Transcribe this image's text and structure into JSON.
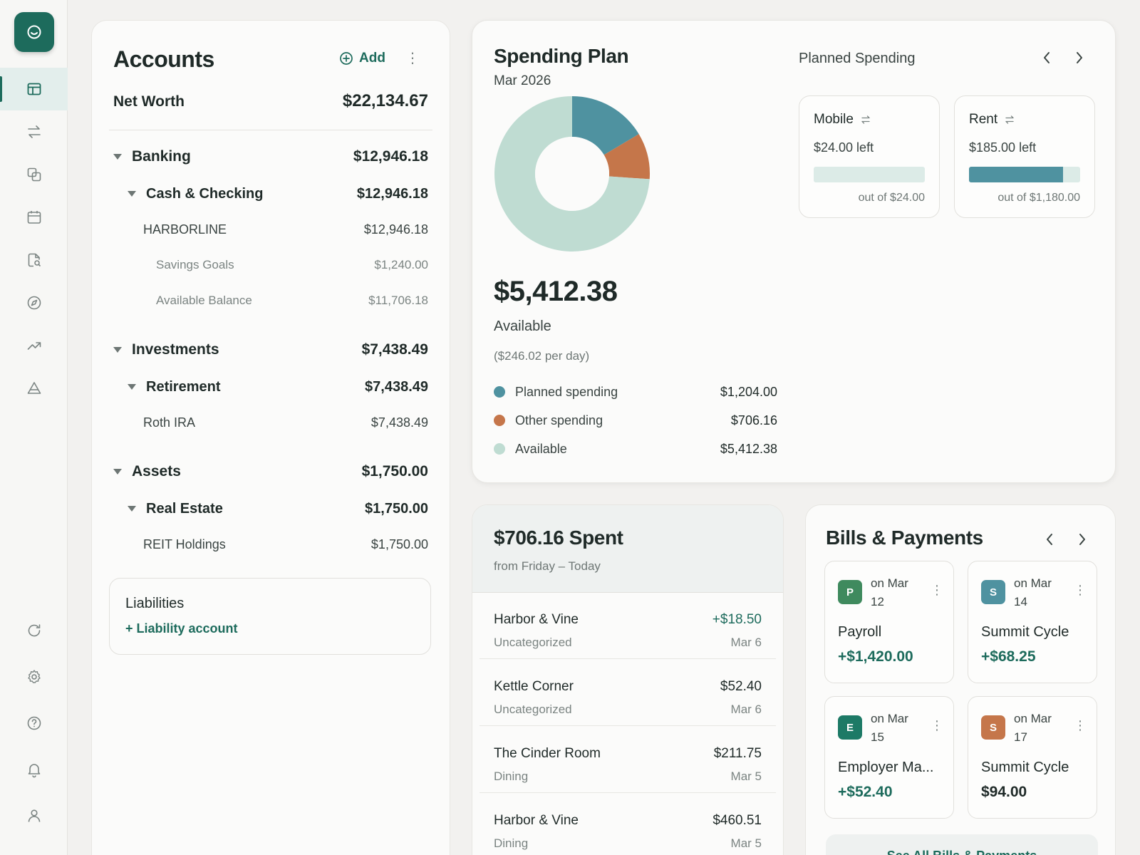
{
  "sidebar": {
    "items": [
      {
        "icon": "dashboard-icon",
        "active": true
      },
      {
        "icon": "transfer-icon",
        "active": false
      },
      {
        "icon": "accounts-icon",
        "active": false
      },
      {
        "icon": "calendar-icon",
        "active": false
      },
      {
        "icon": "reports-icon",
        "active": false
      },
      {
        "icon": "compass-icon",
        "active": false
      },
      {
        "icon": "trend-icon",
        "active": false
      },
      {
        "icon": "goals-icon",
        "active": false
      }
    ],
    "bottom_items": [
      "refresh-icon",
      "settings-icon",
      "help-icon",
      "bell-icon",
      "user-icon"
    ]
  },
  "accounts": {
    "title": "Accounts",
    "add_label": "Add",
    "net_worth_label": "Net Worth",
    "net_worth_value": "$22,134.67",
    "rows": [
      {
        "level": "group",
        "label": "Banking",
        "value": "$12,946.18"
      },
      {
        "level": "sub",
        "label": "Cash & Checking",
        "value": "$12,946.18"
      },
      {
        "level": "acct",
        "label": "HARBORLINE",
        "value": "$12,946.18"
      },
      {
        "level": "det",
        "label": "Savings Goals",
        "value": "$1,240.00"
      },
      {
        "level": "det",
        "label": "Available Balance",
        "value": "$11,706.18"
      },
      {
        "level": "group",
        "label": "Investments",
        "value": "$7,438.49"
      },
      {
        "level": "sub",
        "label": "Retirement",
        "value": "$7,438.49"
      },
      {
        "level": "acct",
        "label": "Roth IRA",
        "value": "$7,438.49"
      },
      {
        "level": "group",
        "label": "Assets",
        "value": "$1,750.00"
      },
      {
        "level": "sub",
        "label": "Real Estate",
        "value": "$1,750.00"
      },
      {
        "level": "acct",
        "label": "REIT Holdings",
        "value": "$1,750.00"
      }
    ],
    "liabilities_title": "Liabilities",
    "liabilities_add": "+ Liability account"
  },
  "spending_plan": {
    "title": "Spending Plan",
    "period": "Mar 2026",
    "planned_label": "Planned Spending",
    "available_amount": "$5,412.38",
    "available_label": "Available",
    "per_day": "($246.02 per day)",
    "legend": [
      {
        "label": "Planned spending",
        "value": "$1,204.00",
        "color": "#4f92a0"
      },
      {
        "label": "Other spending",
        "value": "$706.16",
        "color": "#c5764a"
      },
      {
        "label": "Available",
        "value": "$5,412.38",
        "color": "#bfdcd2"
      }
    ],
    "planned_items": [
      {
        "name": "Mobile",
        "left": "$24.00 left",
        "out_of": "out of $24.00",
        "progress": 0.0
      },
      {
        "name": "Rent",
        "left": "$185.00 left",
        "out_of": "out of $1,180.00",
        "progress": 0.843
      }
    ]
  },
  "chart_data": {
    "type": "pie",
    "categories": [
      "Planned spending",
      "Other spending",
      "Available"
    ],
    "values": [
      1204.0,
      706.16,
      5412.38
    ],
    "colors": [
      "#4f92a0",
      "#c5764a",
      "#bfdcd2"
    ],
    "title": "",
    "donut": true
  },
  "spent": {
    "title": "$706.16 Spent",
    "subtitle": "from Friday – Today",
    "transactions": [
      {
        "merchant": "Harbor & Vine",
        "category": "Uncategorized",
        "amount": "+$18.50",
        "date": "Mar 6",
        "positive": true
      },
      {
        "merchant": "Kettle Corner",
        "category": "Uncategorized",
        "amount": "$52.40",
        "date": "Mar 6",
        "positive": false
      },
      {
        "merchant": "The Cinder Room",
        "category": "Dining",
        "amount": "$211.75",
        "date": "Mar 5",
        "positive": false
      },
      {
        "merchant": "Harbor & Vine",
        "category": "Dining",
        "amount": "$460.51",
        "date": "Mar 5",
        "positive": false
      }
    ]
  },
  "bills": {
    "title": "Bills & Payments",
    "items": [
      {
        "initial": "P",
        "color": "#3f8a5e",
        "on": "on Mar 12",
        "name": "Payroll",
        "amount": "+$1,420.00",
        "positive": true
      },
      {
        "initial": "S",
        "color": "#4f92a0",
        "on": "on Mar 14",
        "name": "Summit Cycle",
        "amount": "+$68.25",
        "positive": true
      },
      {
        "initial": "E",
        "color": "#1d7a66",
        "on": "on Mar 15",
        "name": "Employer Ma...",
        "amount": "+$52.40",
        "positive": true
      },
      {
        "initial": "S",
        "color": "#c5764a",
        "on": "on Mar 17",
        "name": "Summit Cycle",
        "amount": "$94.00",
        "positive": false
      }
    ],
    "see_all": "See All Bills & Payments"
  }
}
